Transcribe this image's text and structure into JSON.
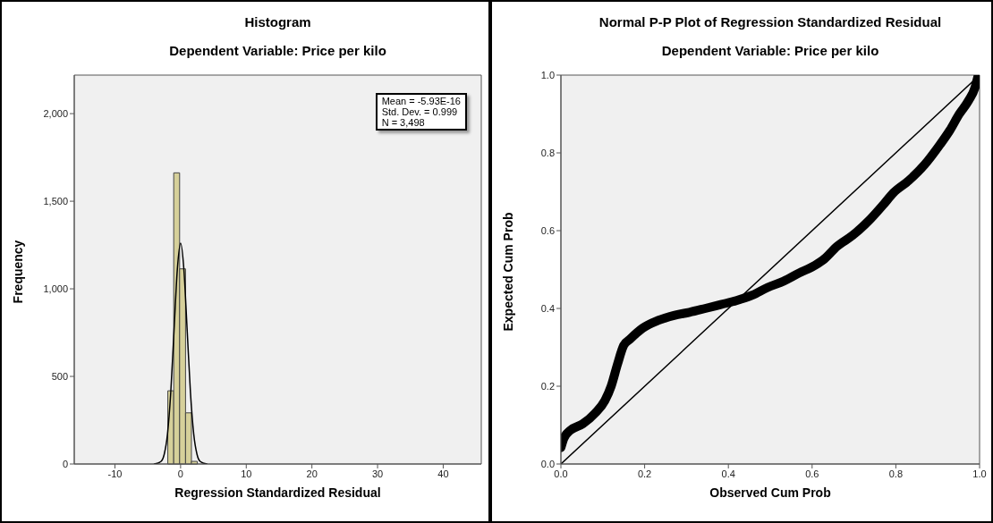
{
  "chart_data": [
    {
      "type": "histogram",
      "title": "Histogram",
      "subtitle": "Dependent Variable: Price per kilo",
      "xlabel": "Regression Standardized Residual",
      "ylabel": "Frequency",
      "bins": [
        -1.95,
        -1.05,
        -0.15,
        0.75,
        1.65,
        2.55
      ],
      "values": [
        418,
        1662,
        1114,
        292,
        15
      ],
      "color": "#d6d09a",
      "series": [
        {
          "type": "line",
          "color": "#000000",
          "x": [
            -4,
            -3,
            -2.5,
            -2,
            -1.5,
            -1,
            -0.5,
            0,
            0.5,
            1,
            1.5,
            2,
            2.5,
            3,
            4
          ],
          "values": [
            0,
            14,
            55,
            170,
            408,
            763,
            1110,
            1260,
            1110,
            763,
            408,
            170,
            55,
            14,
            0
          ]
        }
      ],
      "xlim": [
        -16.2,
        45.8
      ],
      "xticks": [
        -10,
        0,
        10,
        20,
        30,
        40
      ],
      "ylim": [
        0,
        2220
      ],
      "yticks": [
        0,
        500,
        {
          "value": 1000,
          "label": "1,000"
        },
        {
          "value": 1500,
          "label": "1,500"
        },
        {
          "value": 2000,
          "label": "2,000"
        }
      ],
      "annotations": [
        "Mean = -5.93E-16",
        "Std. Dev. = 0.999",
        "N = 3,498"
      ]
    },
    {
      "type": "scatter",
      "title": "Normal P-P Plot of Regression Standardized Residual",
      "subtitle": "Dependent Variable: Price per kilo",
      "xlabel": "Observed Cum Prob",
      "ylabel": "Expected Cum Prob",
      "series": [
        {
          "type": "line",
          "color": "#000000",
          "x": [
            0,
            1
          ],
          "values": [
            0,
            1
          ]
        },
        {
          "type": "line",
          "color": "#000000",
          "x": [
            0,
            0.007,
            0.022,
            0.052,
            0.082,
            0.105,
            0.12,
            0.135,
            0.15,
            0.165,
            0.195,
            0.232,
            0.27,
            0.307,
            0.345,
            0.382,
            0.419,
            0.457,
            0.494,
            0.532,
            0.569,
            0.607,
            0.629,
            0.659,
            0.697,
            0.734,
            0.771,
            0.794,
            0.831,
            0.869,
            0.906,
            0.929,
            0.951,
            0.974,
            0.989,
            0.996
          ],
          "values": [
            0.042,
            0.066,
            0.086,
            0.103,
            0.131,
            0.163,
            0.2,
            0.256,
            0.305,
            0.321,
            0.349,
            0.369,
            0.382,
            0.39,
            0.4,
            0.41,
            0.42,
            0.434,
            0.454,
            0.47,
            0.491,
            0.511,
            0.527,
            0.559,
            0.588,
            0.624,
            0.668,
            0.697,
            0.729,
            0.77,
            0.822,
            0.858,
            0.899,
            0.935,
            0.968,
            0.996
          ]
        }
      ],
      "xlim": [
        0,
        1
      ],
      "xticks": [
        {
          "value": 0,
          "label": "0.0"
        },
        0.2,
        0.4,
        0.6,
        0.8,
        {
          "value": 1,
          "label": "1.0"
        }
      ],
      "ylim": [
        0,
        1
      ],
      "yticks": [
        {
          "value": 0,
          "label": "0.0"
        },
        0.2,
        0.4,
        0.6,
        0.8,
        {
          "value": 1,
          "label": "1.0"
        }
      ]
    }
  ]
}
